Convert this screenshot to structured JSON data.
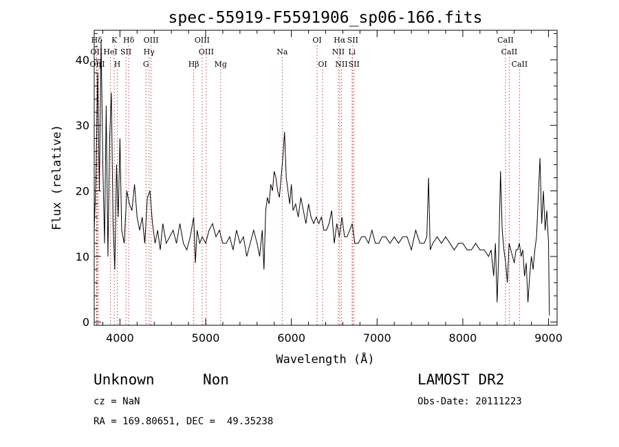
{
  "chart_data": {
    "type": "line",
    "title": "spec-55919-F5591906_sp06-166.fits",
    "xlabel": "Wavelength (Å)",
    "ylabel": "Flux (relative)",
    "xlim": [
      3700,
      9100
    ],
    "ylim": [
      -0.5,
      44.5
    ],
    "x_ticks": [
      4000,
      5000,
      6000,
      7000,
      8000,
      9000
    ],
    "y_ticks": [
      0,
      10,
      20,
      30,
      40
    ],
    "grid": false,
    "series": [
      {
        "line_color": "#000000",
        "x": [
          3700,
          3720,
          3740,
          3760,
          3780,
          3800,
          3820,
          3840,
          3860,
          3880,
          3900,
          3920,
          3940,
          3960,
          3980,
          4000,
          4020,
          4050,
          4080,
          4110,
          4140,
          4170,
          4200,
          4230,
          4260,
          4290,
          4320,
          4350,
          4380,
          4410,
          4440,
          4470,
          4500,
          4540,
          4580,
          4620,
          4660,
          4700,
          4740,
          4780,
          4820,
          4860,
          4880,
          4900,
          4930,
          4960,
          5000,
          5040,
          5080,
          5120,
          5160,
          5200,
          5240,
          5280,
          5320,
          5360,
          5400,
          5440,
          5480,
          5520,
          5560,
          5600,
          5630,
          5660,
          5680,
          5700,
          5720,
          5740,
          5760,
          5780,
          5800,
          5820,
          5840,
          5860,
          5880,
          5900,
          5920,
          5940,
          5960,
          5980,
          6000,
          6020,
          6050,
          6080,
          6110,
          6140,
          6170,
          6200,
          6230,
          6260,
          6290,
          6320,
          6350,
          6380,
          6410,
          6440,
          6470,
          6500,
          6530,
          6560,
          6590,
          6620,
          6650,
          6680,
          6710,
          6740,
          6780,
          6820,
          6860,
          6900,
          6940,
          6980,
          7020,
          7060,
          7100,
          7150,
          7200,
          7250,
          7300,
          7350,
          7400,
          7450,
          7500,
          7550,
          7580,
          7600,
          7620,
          7650,
          7700,
          7750,
          7800,
          7850,
          7900,
          7950,
          8000,
          8050,
          8100,
          8150,
          8200,
          8250,
          8300,
          8330,
          8360,
          8380,
          8400,
          8420,
          8440,
          8460,
          8480,
          8500,
          8520,
          8540,
          8560,
          8580,
          8600,
          8620,
          8640,
          8660,
          8680,
          8700,
          8720,
          8740,
          8760,
          8780,
          8800,
          8820,
          8840,
          8860,
          8880,
          8900,
          8920,
          8940,
          8960,
          8980,
          9000,
          9010
        ],
        "y": [
          14,
          22,
          38,
          20,
          43,
          24,
          12,
          33,
          10,
          28,
          35,
          15,
          8,
          24,
          16,
          28,
          14,
          12,
          20,
          18,
          17,
          21,
          16,
          14,
          16,
          12,
          19,
          20,
          15,
          12,
          14,
          11,
          15,
          12,
          13,
          14,
          12,
          15,
          12,
          11,
          13,
          16,
          9,
          14,
          12,
          13,
          12,
          14,
          15,
          13,
          14,
          12,
          12,
          13,
          11,
          14,
          12,
          13,
          10,
          12,
          14,
          12,
          10,
          14,
          8,
          17,
          19,
          18,
          21,
          20,
          23,
          22,
          20,
          19,
          22,
          25,
          29,
          22,
          20,
          18,
          21,
          17,
          18,
          16,
          19,
          17,
          15,
          18,
          16,
          15,
          16,
          15,
          16,
          14,
          14,
          15,
          17,
          12,
          15,
          13,
          16,
          13,
          13,
          14,
          15,
          12,
          12,
          13,
          13,
          12,
          14,
          12,
          12,
          13,
          13,
          12,
          13,
          12,
          13,
          13,
          11,
          14,
          12,
          12,
          13,
          22,
          11,
          12,
          13,
          12,
          13,
          12,
          11,
          12,
          12,
          11,
          11,
          12,
          11,
          11,
          10,
          11,
          7,
          12,
          3,
          11,
          23,
          14,
          11,
          9,
          6,
          12,
          11,
          10,
          9,
          11,
          11,
          12,
          10,
          11,
          7,
          9,
          3,
          7,
          10,
          8,
          11,
          13,
          19,
          25,
          15,
          20,
          14,
          17,
          12,
          1
        ]
      }
    ],
    "line_markers": [
      {
        "label": "Hδ",
        "x": 3730,
        "row": 1
      },
      {
        "label": "OII",
        "x": 3727,
        "row": 2
      },
      {
        "label": "OIII",
        "x": 3736,
        "row": 3
      },
      {
        "label": "η",
        "x": 3750,
        "row": 3
      },
      {
        "label": "K",
        "x": 3934,
        "row": 1
      },
      {
        "label": "HeI",
        "x": 3889,
        "row": 2
      },
      {
        "label": "SII",
        "x": 4070,
        "row": 2
      },
      {
        "label": "H",
        "x": 3969,
        "row": 3
      },
      {
        "label": "Hδ",
        "x": 4102,
        "row": 1
      },
      {
        "label": "OIII",
        "x": 4363,
        "row": 1
      },
      {
        "label": "Hγ",
        "x": 4340,
        "row": 2
      },
      {
        "label": "G",
        "x": 4304,
        "row": 3
      },
      {
        "label": "OIII",
        "x": 4959,
        "row": 1
      },
      {
        "label": "OIII",
        "x": 5007,
        "row": 2
      },
      {
        "label": "Hβ",
        "x": 4861,
        "row": 3
      },
      {
        "label": "Mg",
        "x": 5175,
        "row": 3
      },
      {
        "label": "Na",
        "x": 5893,
        "row": 2
      },
      {
        "label": "OI",
        "x": 6300,
        "row": 1
      },
      {
        "label": "OI",
        "x": 6364,
        "row": 3
      },
      {
        "label": "Hα",
        "x": 6563,
        "row": 1
      },
      {
        "label": "SII",
        "x": 6716,
        "row": 1
      },
      {
        "label": "NII",
        "x": 6548,
        "row": 2
      },
      {
        "label": "Li",
        "x": 6708,
        "row": 2
      },
      {
        "label": "NII",
        "x": 6584,
        "row": 3
      },
      {
        "label": "SII",
        "x": 6731,
        "row": 3
      },
      {
        "label": "CaII",
        "x": 8498,
        "row": 1
      },
      {
        "label": "CaII",
        "x": 8542,
        "row": 2
      },
      {
        "label": "CaII",
        "x": 8662,
        "row": 3
      }
    ]
  },
  "info": {
    "class": "Unknown",
    "subclass": "Non",
    "survey": "LAMOST DR2",
    "cz": "cz = NaN",
    "obs_date": "Obs-Date: 20111223",
    "coords": "RA = 169.80651, DEC =  49.35238"
  }
}
